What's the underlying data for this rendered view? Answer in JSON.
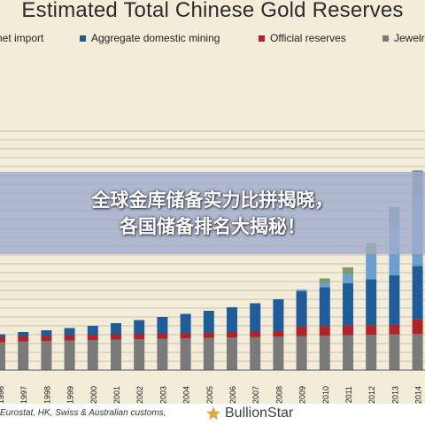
{
  "title": "Estimated Total Chinese Gold Reserves",
  "legend": [
    {
      "label": "net import",
      "color": "#6b9fd0"
    },
    {
      "label": "Aggregate domestic mining",
      "color": "#1f5d9a"
    },
    {
      "label": "Official reserves",
      "color": "#b22226"
    },
    {
      "label": "Jewelr",
      "color": "#7a7a7a"
    }
  ],
  "overlay": {
    "line1": "全球金库储备实力比拼揭晓，",
    "line2": "各国储备排名大揭秘！"
  },
  "footer": {
    "source": "Eurostat, HK, Swiss & Australian customs,",
    "brand": "BullionStar"
  },
  "chart_data": {
    "type": "bar",
    "stacked": true,
    "categories": [
      "1996",
      "1997",
      "1998",
      "1999",
      "2000",
      "2001",
      "2002",
      "2003",
      "2004",
      "2005",
      "2006",
      "2007",
      "2008",
      "2009",
      "2010",
      "2011",
      "2012",
      "2013",
      "2014"
    ],
    "ylim": [
      0,
      27000
    ],
    "grid": true,
    "series": [
      {
        "name": "Jewelr",
        "color": "#7a7a7a",
        "values": [
          3150,
          3250,
          3300,
          3350,
          3400,
          3450,
          3500,
          3550,
          3600,
          3650,
          3700,
          3750,
          3800,
          3850,
          3900,
          3950,
          4000,
          4050,
          4100
        ]
      },
      {
        "name": "Official reserves",
        "color": "#b22226",
        "values": [
          600,
          600,
          600,
          600,
          600,
          600,
          600,
          600,
          600,
          600,
          600,
          600,
          600,
          1054,
          1054,
          1054,
          1054,
          1054,
          1658
        ]
      },
      {
        "name": "Aggregate domestic mining",
        "color": "#1f5d9a",
        "values": [
          300,
          450,
          600,
          800,
          1000,
          1250,
          1550,
          1850,
          2150,
          2450,
          2800,
          3200,
          3600,
          4000,
          4400,
          4800,
          5200,
          5600,
          6000
        ]
      },
      {
        "name": "net import",
        "color": "#6b9fd0",
        "values": [
          0,
          0,
          0,
          0,
          0,
          0,
          0,
          0,
          0,
          0,
          0,
          0,
          0,
          200,
          500,
          1000,
          2800,
          5600,
          7700
        ]
      }
    ],
    "top_segments": [
      {
        "category": "2010",
        "value": 500,
        "color": "#7d9a6a"
      },
      {
        "category": "2011",
        "value": 800,
        "color": "#7d9a6a"
      },
      {
        "category": "2012",
        "value": 1300,
        "color": "#7d9a6a"
      },
      {
        "category": "2013",
        "value": 2100,
        "color": "#6d8f90"
      },
      {
        "category": "2014",
        "value": 3100,
        "color": "#6d8f90"
      }
    ]
  }
}
